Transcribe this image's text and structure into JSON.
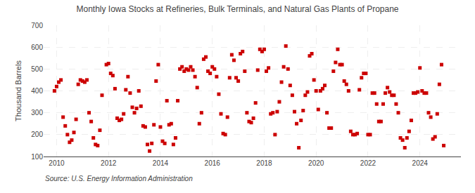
{
  "chart_data": {
    "type": "scatter",
    "title": "Monthly Iowa Stocks at Refineries, Bulk Terminals, and Natural Gas Plants of Propane",
    "ylabel": "Thousand Barrels",
    "annotations": [
      "Source: U.S. Energy Information Administration"
    ],
    "color": "#cc0000",
    "marker": "square",
    "grid": true,
    "xlim": [
      2009.5,
      2025.58
    ],
    "ylim": [
      100,
      700
    ],
    "xticks": [
      2010,
      2012,
      2014,
      2016,
      2018,
      2020,
      2022,
      2024
    ],
    "yticks": [
      100,
      200,
      300,
      400,
      500,
      600,
      700
    ],
    "x": [
      2009.917,
      2010.0,
      2010.083,
      2010.167,
      2010.25,
      2010.333,
      2010.417,
      2010.5,
      2010.583,
      2010.667,
      2010.75,
      2010.833,
      2010.917,
      2011.0,
      2011.083,
      2011.167,
      2011.25,
      2011.333,
      2011.417,
      2011.5,
      2011.583,
      2011.667,
      2011.75,
      2011.917,
      2012.0,
      2012.083,
      2012.167,
      2012.25,
      2012.333,
      2012.417,
      2012.5,
      2012.583,
      2012.667,
      2012.75,
      2012.833,
      2012.917,
      2013.0,
      2013.083,
      2013.167,
      2013.25,
      2013.333,
      2013.417,
      2013.5,
      2013.583,
      2013.667,
      2013.75,
      2013.833,
      2013.917,
      2014.0,
      2014.083,
      2014.167,
      2014.25,
      2014.333,
      2014.417,
      2014.5,
      2014.583,
      2014.667,
      2014.75,
      2014.833,
      2014.917,
      2015.0,
      2015.083,
      2015.167,
      2015.25,
      2015.333,
      2015.417,
      2015.5,
      2015.583,
      2015.667,
      2015.75,
      2015.833,
      2015.917,
      2016.0,
      2016.083,
      2016.167,
      2016.25,
      2016.333,
      2016.417,
      2016.5,
      2016.583,
      2016.667,
      2016.75,
      2016.833,
      2016.917,
      2017.0,
      2017.083,
      2017.167,
      2017.25,
      2017.333,
      2017.417,
      2017.5,
      2017.583,
      2017.667,
      2017.75,
      2017.833,
      2017.917,
      2018.0,
      2018.083,
      2018.167,
      2018.25,
      2018.333,
      2018.417,
      2018.5,
      2018.583,
      2018.667,
      2018.75,
      2018.833,
      2018.917,
      2019.0,
      2019.083,
      2019.167,
      2019.25,
      2019.333,
      2019.417,
      2019.5,
      2019.583,
      2019.667,
      2019.75,
      2019.833,
      2019.917,
      2020.0,
      2020.083,
      2020.167,
      2020.25,
      2020.333,
      2020.417,
      2020.5,
      2020.583,
      2020.667,
      2020.75,
      2020.833,
      2020.917,
      2021.0,
      2021.083,
      2021.167,
      2021.25,
      2021.333,
      2021.417,
      2021.5,
      2021.583,
      2021.667,
      2021.75,
      2021.833,
      2021.917,
      2022.0,
      2022.083,
      2022.167,
      2022.25,
      2022.333,
      2022.417,
      2022.5,
      2022.583,
      2022.667,
      2022.75,
      2022.833,
      2022.917,
      2023.0,
      2023.083,
      2023.167,
      2023.25,
      2023.333,
      2023.417,
      2023.5,
      2023.583,
      2023.667,
      2023.75,
      2023.833,
      2023.917,
      2024.0,
      2024.083,
      2024.167,
      2024.25,
      2024.333,
      2024.417,
      2024.5,
      2024.583,
      2024.667,
      2024.75,
      2024.833,
      2024.917
    ],
    "values": [
      400,
      420,
      440,
      450,
      280,
      240,
      200,
      165,
      175,
      210,
      270,
      430,
      450,
      445,
      440,
      450,
      300,
      260,
      185,
      155,
      150,
      220,
      380,
      520,
      525,
      480,
      470,
      410,
      275,
      265,
      270,
      295,
      405,
      465,
      390,
      325,
      300,
      320,
      400,
      330,
      240,
      235,
      155,
      125,
      160,
      245,
      445,
      520,
      235,
      170,
      160,
      355,
      245,
      250,
      155,
      185,
      355,
      500,
      510,
      490,
      500,
      495,
      510,
      495,
      465,
      415,
      250,
      300,
      545,
      555,
      490,
      480,
      510,
      500,
      465,
      385,
      295,
      205,
      200,
      280,
      460,
      565,
      540,
      460,
      445,
      570,
      580,
      490,
      300,
      260,
      255,
      275,
      345,
      495,
      590,
      580,
      590,
      490,
      505,
      295,
      300,
      200,
      305,
      350,
      440,
      510,
      605,
      500,
      425,
      380,
      305,
      250,
      140,
      265,
      310,
      380,
      395,
      560,
      570,
      450,
      400,
      315,
      400,
      410,
      425,
      300,
      230,
      230,
      490,
      530,
      590,
      520,
      520,
      445,
      430,
      400,
      215,
      200,
      200,
      205,
      405,
      460,
      480,
      480,
      200,
      200,
      390,
      390,
      340,
      260,
      260,
      340,
      390,
      415,
      395,
      380,
      380,
      340,
      300,
      185,
      175,
      140,
      185,
      215,
      265,
      390,
      390,
      395,
      505,
      400,
      390,
      390,
      300,
      280,
      180,
      190,
      295,
      430,
      520,
      150
    ]
  }
}
